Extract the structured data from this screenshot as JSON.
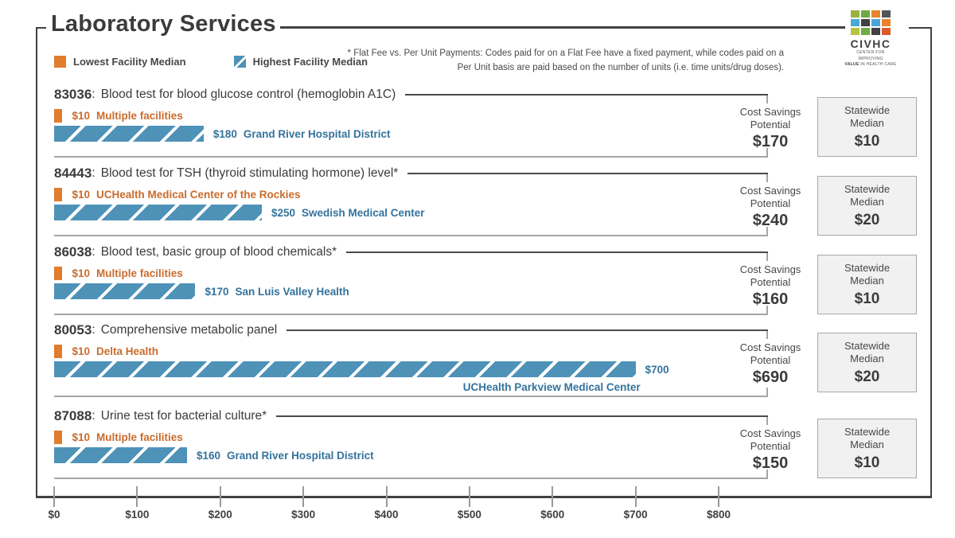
{
  "title": "Laboratory Services",
  "legend": {
    "lowest_label": "Lowest Facility Median",
    "highest_label": "Highest Facility Median"
  },
  "footnote": {
    "line1": "* Flat Fee vs. Per Unit Payments: Codes paid for on a Flat Fee have a fixed payment, while codes paid on a",
    "line2": "Per Unit basis are paid based on the number of units (i.e. time units/drug doses)."
  },
  "logo": {
    "name": "CIVHC",
    "sub1": "CENTER FOR IMPROVING",
    "sub2_bold": "VALUE",
    "sub2_rest": " IN HEALTH CARE",
    "grid_colors": [
      "#9ab23c",
      "#6faa44",
      "#e8832a",
      "#55565a",
      "#4aa8d8",
      "#414042",
      "#4aa8d8",
      "#e8832a",
      "#b4c441",
      "#6faa44",
      "#414042",
      "#dd5a28"
    ]
  },
  "labels": {
    "code_separator": ":",
    "cost_savings_line1": "Cost Savings",
    "cost_savings_line2": "Potential",
    "statewide_line1": "Statewide",
    "statewide_line2": "Median"
  },
  "colors": {
    "orange": "#e07d2e",
    "orange-text": "#c96c2d",
    "blue": "#4e92b8",
    "blue-text": "#34739c",
    "frame": "#414042"
  },
  "chart_data": {
    "type": "bar",
    "title": "Laboratory Services",
    "xlabel": "",
    "ylabel": "",
    "axis": {
      "min": 0,
      "max": 800,
      "ticks": [
        {
          "label": "$0",
          "value": 0
        },
        {
          "label": "$100",
          "value": 100
        },
        {
          "label": "$200",
          "value": 200
        },
        {
          "label": "$300",
          "value": 300
        },
        {
          "label": "$400",
          "value": 400
        },
        {
          "label": "$500",
          "value": 500
        },
        {
          "label": "$600",
          "value": 600
        },
        {
          "label": "$700",
          "value": 700
        },
        {
          "label": "$800",
          "value": 800
        }
      ]
    },
    "rows": [
      {
        "code": "83036",
        "description": "Blood test for blood glucose control (hemoglobin A1C)",
        "lowest": {
          "value": 10,
          "label": "$10",
          "facility": "Multiple facilities"
        },
        "highest": {
          "value": 180,
          "label": "$180",
          "facility": "Grand River Hospital District"
        },
        "cost_savings": "$170",
        "statewide_median": "$10"
      },
      {
        "code": "84443",
        "description": "Blood test for TSH (thyroid stimulating hormone) level*",
        "lowest": {
          "value": 10,
          "label": "$10",
          "facility": "UCHealth Medical Center of the Rockies"
        },
        "highest": {
          "value": 250,
          "label": "$250",
          "facility": "Swedish Medical Center"
        },
        "cost_savings": "$240",
        "statewide_median": "$20"
      },
      {
        "code": "86038",
        "description": "Blood test, basic group of blood chemicals*",
        "lowest": {
          "value": 10,
          "label": "$10",
          "facility": "Multiple facilities"
        },
        "highest": {
          "value": 170,
          "label": "$170",
          "facility": "San Luis Valley Health"
        },
        "cost_savings": "$160",
        "statewide_median": "$10"
      },
      {
        "code": "80053",
        "description": "Comprehensive metabolic panel",
        "lowest": {
          "value": 10,
          "label": "$10",
          "facility": "Delta Health"
        },
        "highest": {
          "value": 700,
          "label": "$700",
          "facility": "UCHealth Parkview Medical Center"
        },
        "cost_savings": "$690",
        "statewide_median": "$20"
      },
      {
        "code": "87088",
        "description": "Urine test for bacterial culture*",
        "lowest": {
          "value": 10,
          "label": "$10",
          "facility": "Multiple facilities"
        },
        "highest": {
          "value": 160,
          "label": "$160",
          "facility": "Grand River Hospital District"
        },
        "cost_savings": "$150",
        "statewide_median": "$10"
      }
    ]
  }
}
